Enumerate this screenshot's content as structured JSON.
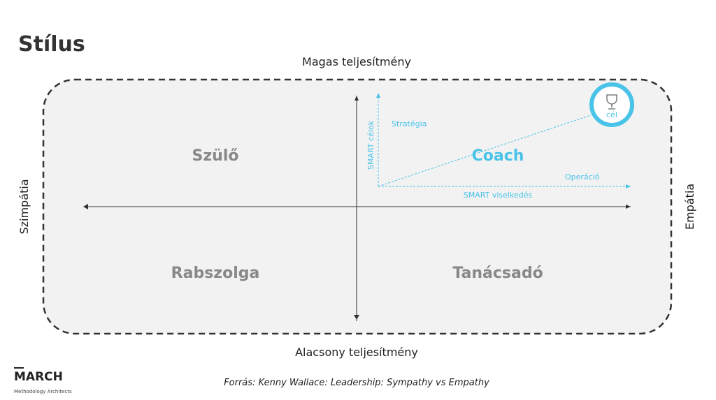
{
  "title": "Stílus",
  "axes": {
    "top": "Magas teljesítmény",
    "bottom": "Alacsony teljesítmény",
    "left": "Szimpátia",
    "right": "Empátia"
  },
  "quadrants": {
    "top_left": "Szülő",
    "top_right": "Coach",
    "bottom_left": "Rabszolga",
    "bottom_right": "Tanácsadó"
  },
  "coach_diagram": {
    "y_axis": "SMART célok",
    "x_axis": "SMART viselkedés",
    "upper": "Stratégia",
    "lower": "Operáció",
    "goal": "cél"
  },
  "logo": {
    "name": "MARCH",
    "tagline": "Methodology Architects"
  },
  "source": "Forrás: Kenny Wallace: Leadership: Sympathy vs Empathy"
}
